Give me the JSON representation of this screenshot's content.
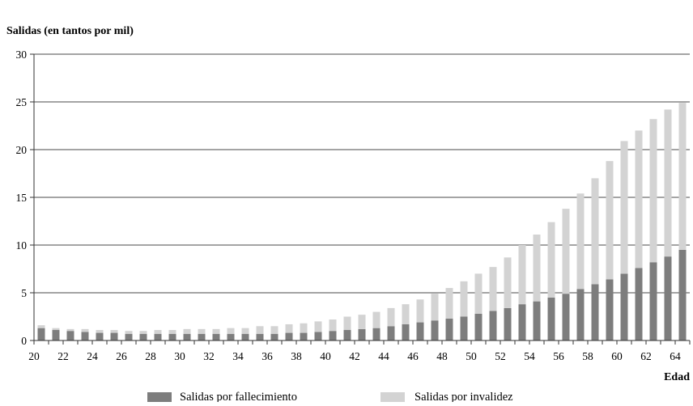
{
  "chart_data": {
    "type": "bar",
    "stacked": true,
    "ylabel": "Salidas (en tantos por mil)",
    "xlabel": "Edad",
    "ylim": [
      0,
      30
    ],
    "yticks": [
      0,
      5,
      10,
      15,
      20,
      25,
      30
    ],
    "xlim": [
      20,
      65
    ],
    "xtick_labels": [
      "20",
      "22",
      "24",
      "26",
      "28",
      "30",
      "32",
      "34",
      "36",
      "38",
      "40",
      "42",
      "44",
      "46",
      "48",
      "50",
      "52",
      "54",
      "56",
      "58",
      "60",
      "62",
      "64"
    ],
    "grid": true,
    "legend_position": "bottom",
    "categories": [
      20,
      21,
      22,
      23,
      24,
      25,
      26,
      27,
      28,
      29,
      30,
      31,
      32,
      33,
      34,
      35,
      36,
      37,
      38,
      39,
      40,
      41,
      42,
      43,
      44,
      45,
      46,
      47,
      48,
      49,
      50,
      51,
      52,
      53,
      54,
      55,
      56,
      57,
      58,
      59,
      60,
      61,
      62,
      63,
      64
    ],
    "series": [
      {
        "name": "Salidas por fallecimiento",
        "color": "#7d7d7d",
        "values": [
          1.3,
          1.1,
          1.0,
          0.9,
          0.8,
          0.8,
          0.7,
          0.7,
          0.7,
          0.7,
          0.7,
          0.7,
          0.7,
          0.7,
          0.7,
          0.7,
          0.7,
          0.8,
          0.8,
          0.9,
          1.0,
          1.1,
          1.2,
          1.3,
          1.5,
          1.7,
          1.9,
          2.1,
          2.3,
          2.5,
          2.8,
          3.1,
          3.4,
          3.8,
          4.1,
          4.5,
          4.9,
          5.4,
          5.9,
          6.4,
          7.0,
          7.6,
          8.2,
          8.8,
          9.5
        ]
      },
      {
        "name": "Salidas por invalidez",
        "color": "#d3d3d3",
        "values": [
          0.3,
          0.2,
          0.2,
          0.3,
          0.3,
          0.3,
          0.3,
          0.3,
          0.4,
          0.4,
          0.5,
          0.5,
          0.5,
          0.6,
          0.6,
          0.8,
          0.8,
          0.9,
          1.0,
          1.1,
          1.2,
          1.4,
          1.5,
          1.7,
          1.9,
          2.1,
          2.4,
          2.8,
          3.2,
          3.7,
          4.2,
          4.6,
          5.3,
          6.2,
          7.0,
          7.9,
          8.9,
          10.0,
          11.1,
          12.4,
          13.9,
          14.4,
          15.0,
          15.4,
          15.4
        ]
      }
    ]
  }
}
